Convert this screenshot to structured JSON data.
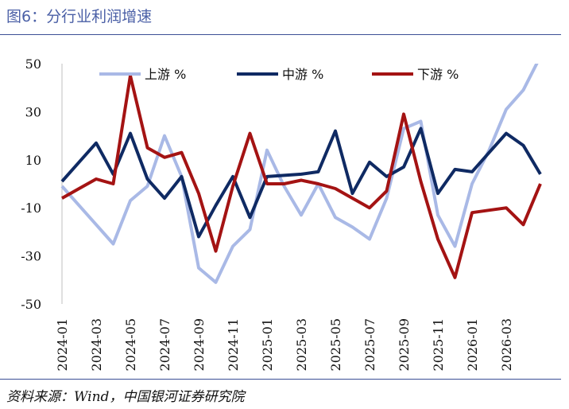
{
  "figure": {
    "title": "图6：分行业利润增速",
    "source": "资料来源：Wind，中国银河证券研究院"
  },
  "chart_data": {
    "type": "line",
    "title": "",
    "xlabel": "",
    "ylabel": "",
    "ylim": [
      -50,
      50
    ],
    "yticks": [
      "50",
      "30",
      "10",
      "-10",
      "-30",
      "-50"
    ],
    "x": [
      "2024-01",
      "2024-02",
      "2024-03",
      "2024-04",
      "2024-05",
      "2024-06",
      "2024-07",
      "2024-08",
      "2024-09",
      "2024-10",
      "2024-11",
      "2024-12",
      "2025-01",
      "2025-02",
      "2025-03",
      "2025-04",
      "2025-05",
      "2025-06",
      "2025-07",
      "2025-08",
      "2025-09",
      "2025-10",
      "2025-11",
      "2025-12",
      "2026-01",
      "2026-02",
      "2026-03",
      "2026-04",
      "2026-05"
    ],
    "xtick_labels": [
      "2024-01",
      "2024-03",
      "2024-05",
      "2024-07",
      "2024-09",
      "2024-11",
      "2025-01",
      "2025-03",
      "2025-05",
      "2025-07",
      "2025-09",
      "2025-11",
      "2026-01",
      "2026-03"
    ],
    "legend_position": "top",
    "grid": false,
    "series": [
      {
        "name": "上游 %",
        "color": "#a9b9e6",
        "values": [
          -1,
          -9,
          -17,
          -25,
          -7,
          -1,
          20,
          3,
          -35,
          -41,
          -26,
          -19,
          14,
          -1,
          -13,
          0,
          -14,
          -18,
          -23,
          -6,
          23,
          26,
          -13,
          -26,
          0,
          14,
          31,
          39,
          53
        ]
      },
      {
        "name": "中游 %",
        "color": "#0f2a63",
        "values": [
          1,
          9,
          17,
          4,
          21,
          2,
          -6,
          3,
          -22,
          -9,
          3,
          -14,
          3,
          3.5,
          4,
          5,
          22,
          -4,
          9,
          3,
          7,
          23,
          -4,
          6,
          5,
          13,
          21,
          16,
          4
        ]
      },
      {
        "name": "下游 %",
        "color": "#a41313",
        "values": [
          -6,
          -2,
          2,
          0,
          45,
          15,
          11,
          13,
          -4,
          -28,
          -1,
          21,
          0,
          0,
          1.5,
          0,
          -2,
          -6,
          -10,
          -3,
          29,
          1,
          -23,
          -39,
          -12,
          -11,
          -10,
          -17,
          0
        ]
      }
    ]
  }
}
